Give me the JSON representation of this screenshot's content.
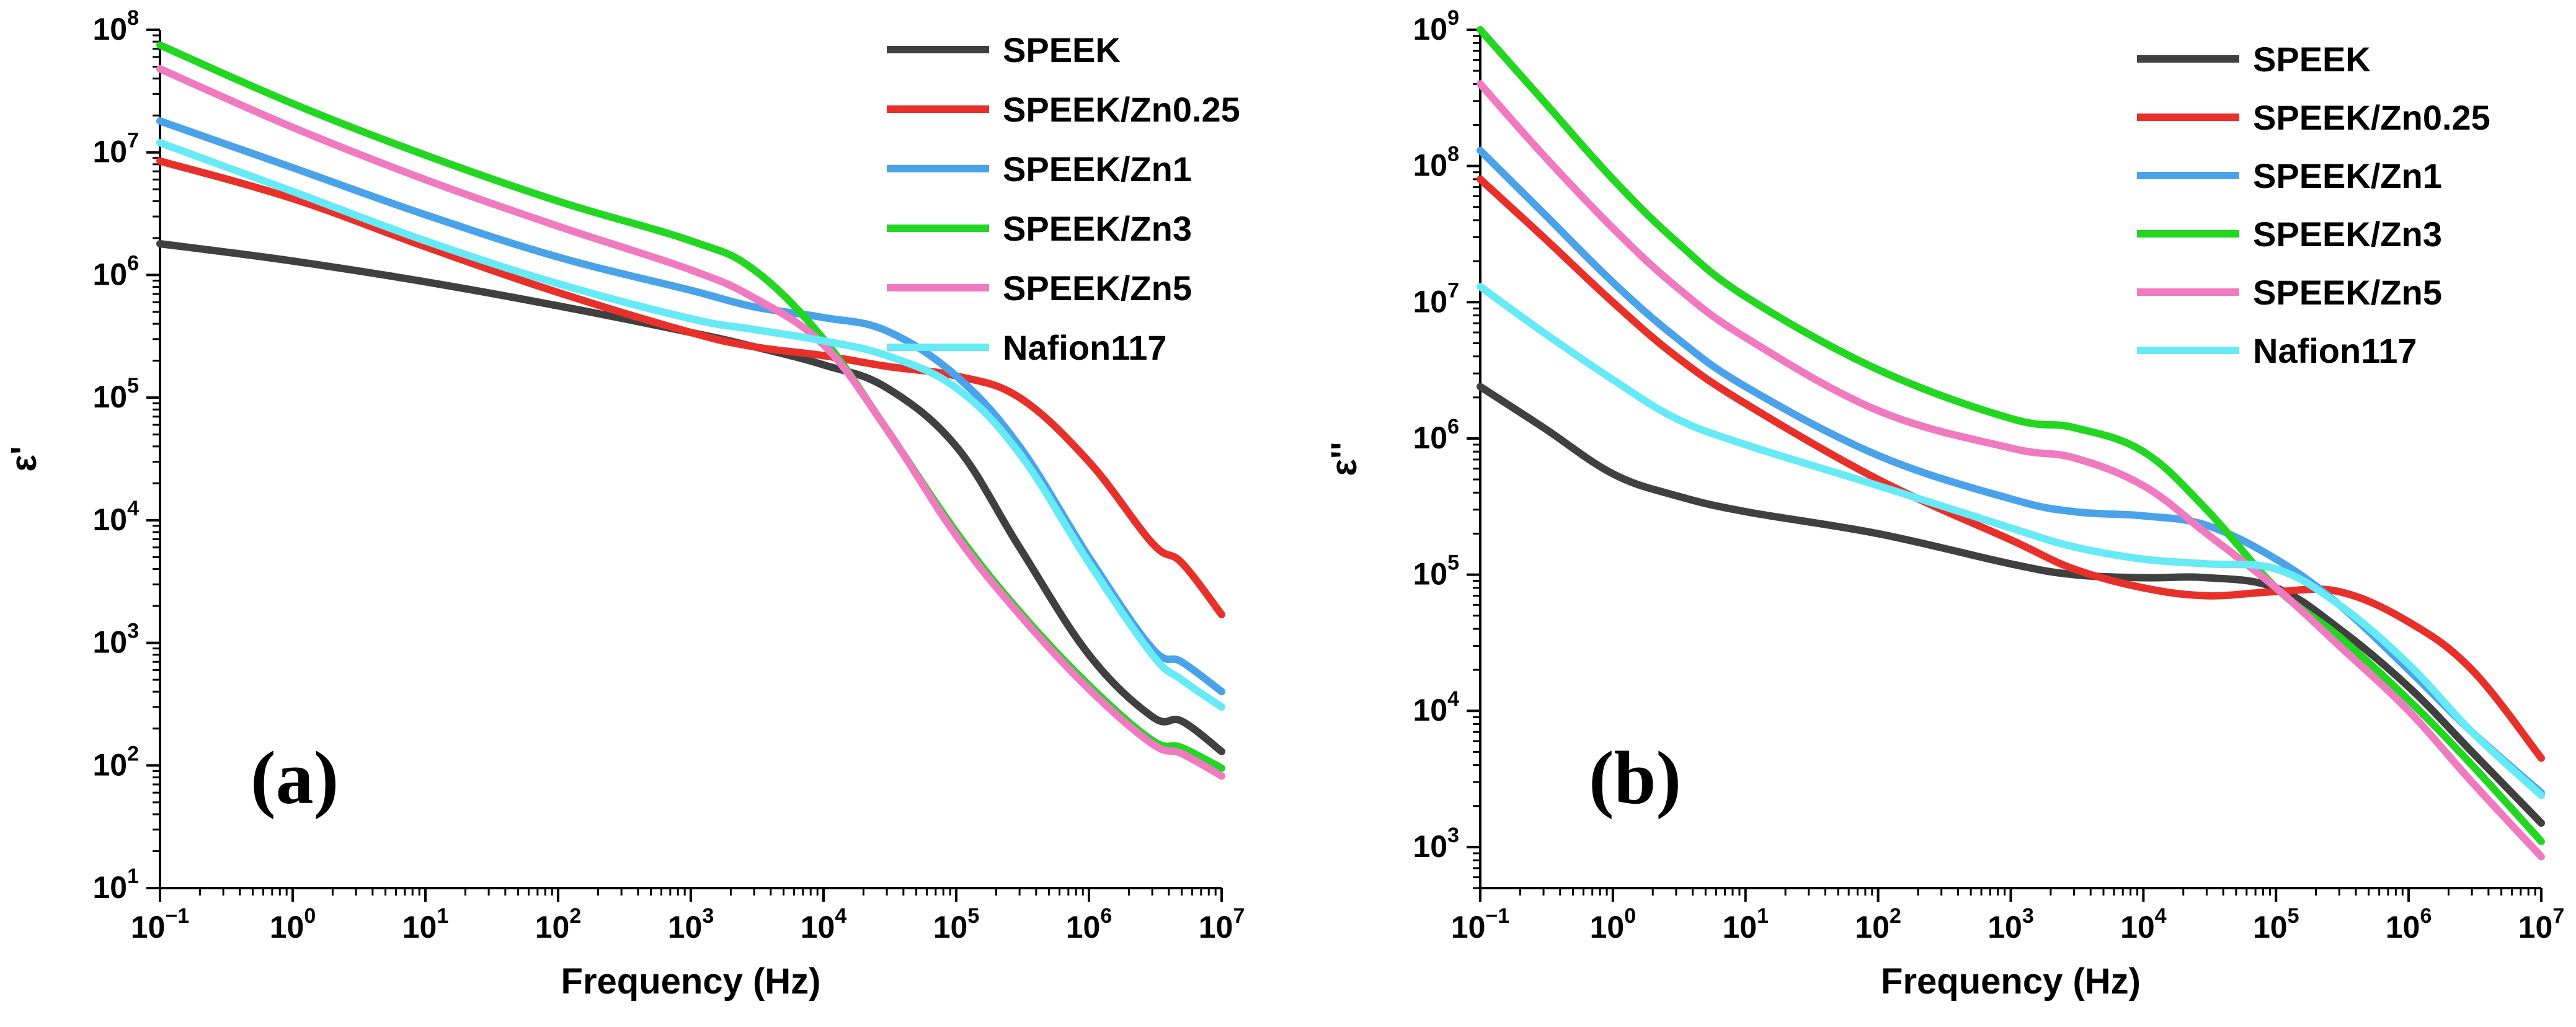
{
  "chart_data": [
    {
      "type": "line",
      "panel_label": "(a)",
      "xlabel": "Frequency (Hz)",
      "ylabel": "ε'",
      "xscale": "log",
      "yscale": "log",
      "xlim": [
        0.1,
        10000000
      ],
      "ylim": [
        10,
        100000000
      ],
      "x_ticks": [
        {
          "base": "10",
          "exp": "−1"
        },
        {
          "base": "10",
          "exp": "0"
        },
        {
          "base": "10",
          "exp": "1"
        },
        {
          "base": "10",
          "exp": "2"
        },
        {
          "base": "10",
          "exp": "3"
        },
        {
          "base": "10",
          "exp": "4"
        },
        {
          "base": "10",
          "exp": "5"
        },
        {
          "base": "10",
          "exp": "6"
        },
        {
          "base": "10",
          "exp": "7"
        }
      ],
      "y_ticks": [
        {
          "base": "10",
          "exp": "1"
        },
        {
          "base": "10",
          "exp": "2"
        },
        {
          "base": "10",
          "exp": "3"
        },
        {
          "base": "10",
          "exp": "4"
        },
        {
          "base": "10",
          "exp": "5"
        },
        {
          "base": "10",
          "exp": "6"
        },
        {
          "base": "10",
          "exp": "7"
        },
        {
          "base": "10",
          "exp": "8"
        }
      ],
      "legend_position": "top-right",
      "x": [
        0.1,
        1,
        10,
        100,
        1000,
        3000,
        10000,
        30000,
        100000,
        300000,
        1000000,
        3000000,
        5000000,
        10000000
      ],
      "series": [
        {
          "name": "SPEEK",
          "color": "#404040",
          "values": [
            1800000,
            1300000,
            880000,
            560000,
            340000,
            260000,
            185000,
            120000,
            40000,
            6000,
            800,
            250,
            230,
            130
          ]
        },
        {
          "name": "SPEEK/Zn0.25",
          "color": "#e8302a",
          "values": [
            8500000,
            4200000,
            1700000,
            720000,
            340000,
            260000,
            220000,
            180000,
            150000,
            100000,
            30000,
            6500,
            4500,
            1700
          ]
        },
        {
          "name": "SPEEK/Zn1",
          "color": "#4aa3e8",
          "values": [
            18000000,
            7500000,
            3100000,
            1400000,
            750000,
            550000,
            450000,
            350000,
            150000,
            40000,
            5000,
            900,
            700,
            400
          ]
        },
        {
          "name": "SPEEK/Zn3",
          "color": "#22d622",
          "values": [
            75000000,
            25000000,
            9500000,
            4000000,
            1900000,
            1100000,
            300000,
            55000,
            8000,
            1800,
            450,
            160,
            140,
            95
          ]
        },
        {
          "name": "SPEEK/Zn5",
          "color": "#f07ac0",
          "values": [
            48000000,
            16000000,
            6000000,
            2500000,
            1100000,
            650000,
            270000,
            55000,
            7500,
            1700,
            420,
            150,
            125,
            82
          ]
        },
        {
          "name": "Nafion117",
          "color": "#66eaf6",
          "values": [
            12000000,
            4800000,
            1900000,
            850000,
            440000,
            360000,
            290000,
            220000,
            120000,
            35000,
            4500,
            800,
            500,
            300
          ]
        }
      ]
    },
    {
      "type": "line",
      "panel_label": "(b)",
      "xlabel": "Frequency (Hz)",
      "ylabel": "ε''",
      "xscale": "log",
      "yscale": "log",
      "xlim": [
        0.1,
        10000000
      ],
      "ylim": [
        500,
        1000000000
      ],
      "x_ticks": [
        {
          "base": "10",
          "exp": "−1"
        },
        {
          "base": "10",
          "exp": "0"
        },
        {
          "base": "10",
          "exp": "1"
        },
        {
          "base": "10",
          "exp": "2"
        },
        {
          "base": "10",
          "exp": "3"
        },
        {
          "base": "10",
          "exp": "4"
        },
        {
          "base": "10",
          "exp": "5"
        },
        {
          "base": "10",
          "exp": "6"
        },
        {
          "base": "10",
          "exp": "7"
        }
      ],
      "y_ticks": [
        {
          "base": "10",
          "exp": "3"
        },
        {
          "base": "10",
          "exp": "4"
        },
        {
          "base": "10",
          "exp": "5"
        },
        {
          "base": "10",
          "exp": "6"
        },
        {
          "base": "10",
          "exp": "7"
        },
        {
          "base": "10",
          "exp": "8"
        },
        {
          "base": "10",
          "exp": "9"
        }
      ],
      "legend_position": "top-right",
      "x": [
        0.1,
        0.3,
        1,
        3,
        10,
        100,
        1000,
        3000,
        10000,
        30000,
        100000,
        300000,
        1000000,
        3000000,
        10000000
      ],
      "series": [
        {
          "name": "SPEEK",
          "color": "#404040",
          "values": [
            2400000,
            1200000,
            550000,
            380000,
            290000,
            200000,
            120000,
            100000,
            95000,
            95000,
            80000,
            40000,
            15000,
            5000,
            1500
          ]
        },
        {
          "name": "SPEEK/Zn0.25",
          "color": "#e8302a",
          "values": [
            80000000,
            30000000,
            10000000,
            4000000,
            1800000,
            500000,
            180000,
            110000,
            80000,
            70000,
            75000,
            75000,
            45000,
            20000,
            4500
          ]
        },
        {
          "name": "SPEEK/Zn1",
          "color": "#4aa3e8",
          "values": [
            130000000,
            45000000,
            14000000,
            5500000,
            2400000,
            750000,
            360000,
            290000,
            270000,
            230000,
            130000,
            60000,
            20000,
            7000,
            2500
          ]
        },
        {
          "name": "SPEEK/Zn3",
          "color": "#22d622",
          "values": [
            1000000000,
            300000000,
            80000000,
            28000000,
            11000000,
            3200000,
            1400000,
            1200000,
            800000,
            300000,
            80000,
            35000,
            12000,
            4000,
            1100
          ]
        },
        {
          "name": "SPEEK/Zn5",
          "color": "#f07ac0",
          "values": [
            400000000,
            120000000,
            35000000,
            13000000,
            5500000,
            1600000,
            850000,
            720000,
            450000,
            200000,
            80000,
            30000,
            10000,
            3000,
            850
          ]
        },
        {
          "name": "Nafion117",
          "color": "#66eaf6",
          "values": [
            13000000,
            6000000,
            2700000,
            1400000,
            900000,
            450000,
            220000,
            160000,
            130000,
            120000,
            110000,
            60000,
            22000,
            7000,
            2400
          ]
        }
      ]
    }
  ]
}
